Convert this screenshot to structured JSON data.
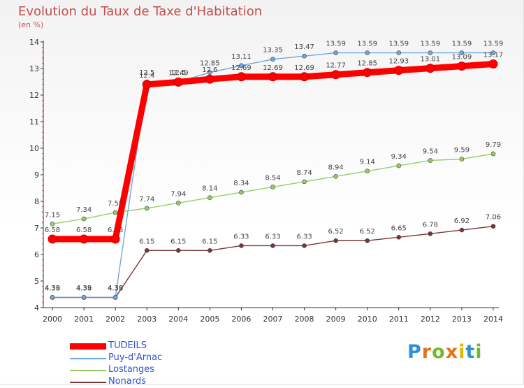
{
  "header": {
    "title": "Evolution du Taux de Taxe d'Habitation",
    "unit": "(en %)"
  },
  "chart_data": {
    "type": "line",
    "x": [
      "2000",
      "2001",
      "2002",
      "2003",
      "2004",
      "2005",
      "2006",
      "2007",
      "2008",
      "2009",
      "2010",
      "2011",
      "2012",
      "2013",
      "2014"
    ],
    "yticks": [
      "4",
      "5",
      "6",
      "7",
      "8",
      "9",
      "10",
      "11",
      "12",
      "13",
      "14"
    ],
    "ylim": [
      4,
      14
    ],
    "grid": false,
    "legend_position": "bottom-left",
    "series": [
      {
        "name": "TUDEILS",
        "color": "#ff0000",
        "values": [
          6.58,
          6.58,
          6.58,
          12.4,
          12.49,
          12.6,
          12.69,
          12.69,
          12.69,
          12.77,
          12.85,
          12.93,
          13.01,
          13.09,
          13.17
        ],
        "labels": [
          "6.58",
          "6.58",
          "6.58",
          "12.4",
          "12.49",
          "12.6",
          "12.69",
          "12.69",
          "12.69",
          "12.77",
          "12.85",
          "12.93",
          "13.01",
          "13.09",
          "13.17"
        ]
      },
      {
        "name": "Puy-d'Arnac",
        "color": "#6fa8dc",
        "values": [
          4.39,
          4.39,
          4.39,
          12.5,
          12.5,
          12.85,
          13.11,
          13.35,
          13.47,
          13.59,
          13.59,
          13.59,
          13.59,
          13.59,
          13.59
        ],
        "labels": [
          "4.39",
          "4.39",
          "4.39",
          "12.5",
          "12.5",
          "12.85",
          "13.11",
          "13.35",
          "13.47",
          "13.59",
          "13.59",
          "13.59",
          "13.59",
          "13.59",
          "13.59"
        ]
      },
      {
        "name": "Lostanges",
        "color": "#99cc66",
        "values": [
          7.15,
          7.34,
          7.58,
          7.74,
          7.94,
          8.14,
          8.34,
          8.54,
          8.74,
          8.94,
          9.14,
          9.34,
          9.54,
          9.59,
          9.79
        ],
        "labels": [
          "7.15",
          "7.34",
          "7.58",
          "7.74",
          "7.94",
          "8.14",
          "8.34",
          "8.54",
          "8.74",
          "8.94",
          "9.14",
          "9.34",
          "9.54",
          "9.59",
          "9.79"
        ]
      },
      {
        "name": "Nonards",
        "color": "#7b3535",
        "values": [
          4.38,
          4.38,
          4.38,
          6.15,
          6.15,
          6.15,
          6.33,
          6.33,
          6.33,
          6.52,
          6.52,
          6.65,
          6.78,
          6.92,
          7.06
        ],
        "labels": [
          "4.38",
          "4.38",
          "4.38",
          "6.15",
          "6.15",
          "6.15",
          "6.33",
          "6.33",
          "6.33",
          "6.52",
          "6.52",
          "6.65",
          "6.78",
          "6.92",
          "7.06"
        ]
      }
    ]
  },
  "legend": {
    "items": [
      {
        "label": "TUDEILS",
        "color": "#ff0000"
      },
      {
        "label": "Puy-d'Arnac",
        "color": "#6fa8dc"
      },
      {
        "label": "Lostanges",
        "color": "#99cc66"
      },
      {
        "label": "Nonards",
        "color": "#7b3535"
      }
    ]
  },
  "logo": {
    "letters": [
      "P",
      "r",
      "o",
      "x",
      "i",
      "t",
      "i"
    ],
    "colors": [
      "#2f8fd8",
      "#e8701a",
      "#74b72e",
      "#e8701a",
      "#e8b400",
      "#2f8fd8",
      "#74b72e"
    ]
  }
}
